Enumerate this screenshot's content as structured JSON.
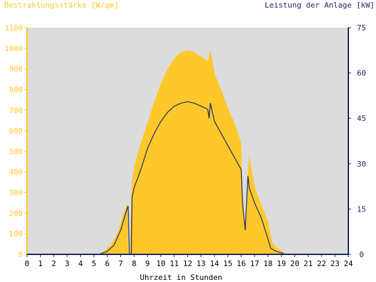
{
  "chart_data": {
    "type": "area",
    "title_left": "Bestrahlungsstärke [W/qm]",
    "title_right": "Leistung der Anlage [kW]",
    "xlabel": "Uhrzeit in Stunden",
    "x_ticks": [
      "0",
      "1",
      "2",
      "3",
      "4",
      "5",
      "6",
      "7",
      "8",
      "9",
      "10",
      "11",
      "12",
      "13",
      "14",
      "15",
      "16",
      "17",
      "18",
      "19",
      "20",
      "21",
      "22",
      "23",
      "24"
    ],
    "xlim": [
      0,
      24
    ],
    "y_left": {
      "label": "Bestrahlungsstärke [W/qm]",
      "lim": [
        0,
        1100
      ],
      "ticks": [
        "0",
        "100",
        "200",
        "300",
        "400",
        "500",
        "600",
        "700",
        "800",
        "900",
        "1000",
        "1100"
      ]
    },
    "y_right": {
      "label": "Leistung der Anlage [kW]",
      "lim": [
        0,
        75
      ],
      "ticks": [
        "0",
        "15",
        "30",
        "45",
        "60",
        "75"
      ]
    },
    "grid": false,
    "series": [
      {
        "name": "Bestrahlungsstärke [W/qm]",
        "axis": "left",
        "kind": "area",
        "color": "#ffc82a",
        "x": [
          0,
          5.3,
          5.6,
          6.0,
          6.4,
          6.8,
          7.2,
          7.5,
          7.55,
          7.65,
          7.8,
          7.85,
          8.0,
          8.5,
          9.0,
          9.5,
          10.0,
          10.5,
          11.0,
          11.5,
          12.0,
          12.5,
          13.0,
          13.5,
          13.7,
          13.8,
          14.0,
          14.5,
          15.0,
          15.5,
          16.0,
          16.1,
          16.3,
          16.5,
          16.6,
          17.0,
          17.5,
          18.0,
          18.3,
          18.6,
          19.0,
          19.3,
          24
        ],
        "values": [
          0,
          0,
          10,
          30,
          60,
          110,
          200,
          250,
          0,
          0,
          300,
          360,
          420,
          540,
          640,
          740,
          830,
          900,
          950,
          980,
          990,
          980,
          960,
          940,
          990,
          960,
          880,
          800,
          710,
          640,
          540,
          300,
          120,
          400,
          480,
          330,
          240,
          160,
          60,
          35,
          20,
          0,
          0
        ]
      },
      {
        "name": "Leistung der Anlage [kW]",
        "axis": "right",
        "kind": "line",
        "color": "#1a2a66",
        "x": [
          0,
          5.4,
          6.0,
          6.5,
          7.0,
          7.4,
          7.55,
          7.65,
          7.8,
          7.85,
          8.0,
          8.5,
          9.0,
          9.5,
          10.0,
          10.5,
          11.0,
          11.5,
          12.0,
          12.5,
          13.0,
          13.5,
          13.6,
          13.7,
          14.0,
          14.5,
          15.0,
          15.5,
          16.0,
          16.1,
          16.3,
          16.5,
          16.6,
          17.0,
          17.5,
          18.0,
          18.2,
          18.6,
          19.0,
          19.3,
          24
        ],
        "values": [
          0,
          0,
          1,
          3,
          8,
          14,
          16,
          0,
          0,
          19,
          22,
          28,
          35,
          40,
          44,
          47,
          49,
          50,
          50.5,
          50,
          49,
          48,
          45,
          50,
          44,
          40,
          36,
          32,
          28,
          17,
          8,
          26,
          22,
          17,
          12,
          5,
          2,
          1,
          0.5,
          0,
          0
        ]
      }
    ]
  }
}
